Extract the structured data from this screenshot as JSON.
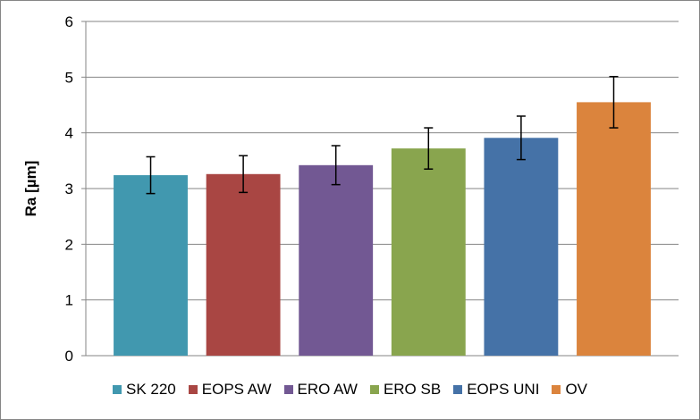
{
  "chart_data": {
    "type": "bar",
    "ylabel": "Ra [µm]",
    "xlabel": "",
    "ylim": [
      0,
      6
    ],
    "yticks": [
      0,
      1,
      2,
      3,
      4,
      5,
      6
    ],
    "grid": true,
    "legend_position": "bottom",
    "error_bars": true,
    "series": [
      {
        "name": "SK 220",
        "value": 3.24,
        "error": 0.33,
        "color": "#4198AF"
      },
      {
        "name": "EOPS AW",
        "value": 3.26,
        "error": 0.33,
        "color": "#A94643"
      },
      {
        "name": "ERO AW",
        "value": 3.42,
        "error": 0.35,
        "color": "#725893"
      },
      {
        "name": "ERO SB",
        "value": 3.72,
        "error": 0.37,
        "color": "#89A54E"
      },
      {
        "name": "EOPS UNI",
        "value": 3.91,
        "error": 0.39,
        "color": "#4572A7"
      },
      {
        "name": "OV",
        "value": 4.55,
        "error": 0.46,
        "color": "#DB843D"
      }
    ]
  }
}
